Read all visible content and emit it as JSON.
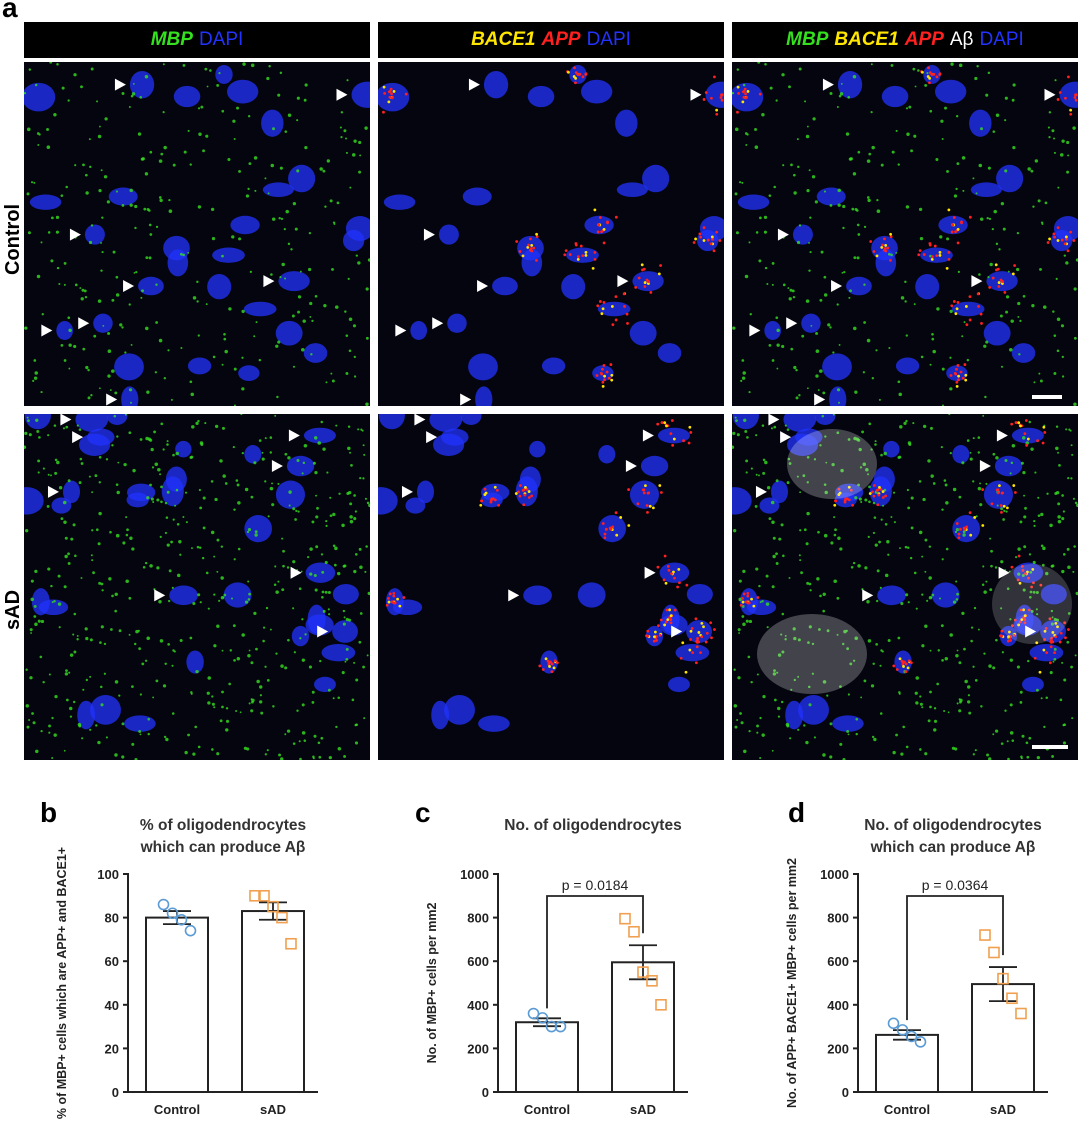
{
  "figure": {
    "panel_a_label": "a",
    "panel_b_label": "b",
    "panel_c_label": "c",
    "panel_d_label": "d",
    "headers": {
      "col1": [
        "MBP",
        "DAPI"
      ],
      "col2": [
        "BACE1",
        "APP",
        "DAPI"
      ],
      "col3": [
        "MBP",
        "BACE1",
        "APP",
        "Aβ",
        "DAPI"
      ]
    },
    "row_labels": [
      "Control",
      "sAD"
    ],
    "colors": {
      "mbp": "#35e01f",
      "dapi": "#2233ff",
      "bace1": "#ffe600",
      "app": "#ff2020",
      "abeta": "#ffffff",
      "control_marker": "#5b9bd5",
      "sad_marker": "#f0a050"
    }
  },
  "chart_data": [
    {
      "type": "bar",
      "panel": "b",
      "title": [
        "% of oligodendrocytes",
        "which can produce Aβ"
      ],
      "ylabel": "% of MBP+ cells which are APP+ and BACE1+",
      "categories": [
        "Control",
        "sAD"
      ],
      "values": [
        80,
        83
      ],
      "sem": [
        3,
        4
      ],
      "points": [
        [
          86,
          82,
          79,
          74
        ],
        [
          90,
          90,
          85,
          80,
          68
        ]
      ],
      "ylim": [
        0,
        100
      ],
      "yticks": [
        0,
        20,
        40,
        60,
        80,
        100
      ],
      "pvalue": ""
    },
    {
      "type": "bar",
      "panel": "c",
      "title": [
        "No. of oligodendrocytes"
      ],
      "ylabel": "No. of MBP+ cells per mm2",
      "categories": [
        "Control",
        "sAD"
      ],
      "values": [
        320,
        595
      ],
      "sem": [
        18,
        78
      ],
      "points": [
        [
          360,
          340,
          300,
          300
        ],
        [
          795,
          735,
          550,
          510,
          400
        ]
      ],
      "ylim": [
        0,
        1000
      ],
      "yticks": [
        0,
        200,
        400,
        600,
        800,
        1000
      ],
      "pvalue": "p = 0.0184"
    },
    {
      "type": "bar",
      "panel": "d",
      "title": [
        "No. of oligodendrocytes",
        "which can produce Aβ"
      ],
      "ylabel": "No. of APP+ BACE1+ MBP+ cells per mm2",
      "categories": [
        "Control",
        "sAD"
      ],
      "values": [
        262,
        495
      ],
      "sem": [
        22,
        78
      ],
      "points": [
        [
          315,
          285,
          255,
          230
        ],
        [
          720,
          640,
          520,
          430,
          360
        ]
      ],
      "ylim": [
        0,
        1000
      ],
      "yticks": [
        0,
        200,
        400,
        600,
        800,
        1000
      ],
      "pvalue": "p = 0.0364"
    }
  ]
}
